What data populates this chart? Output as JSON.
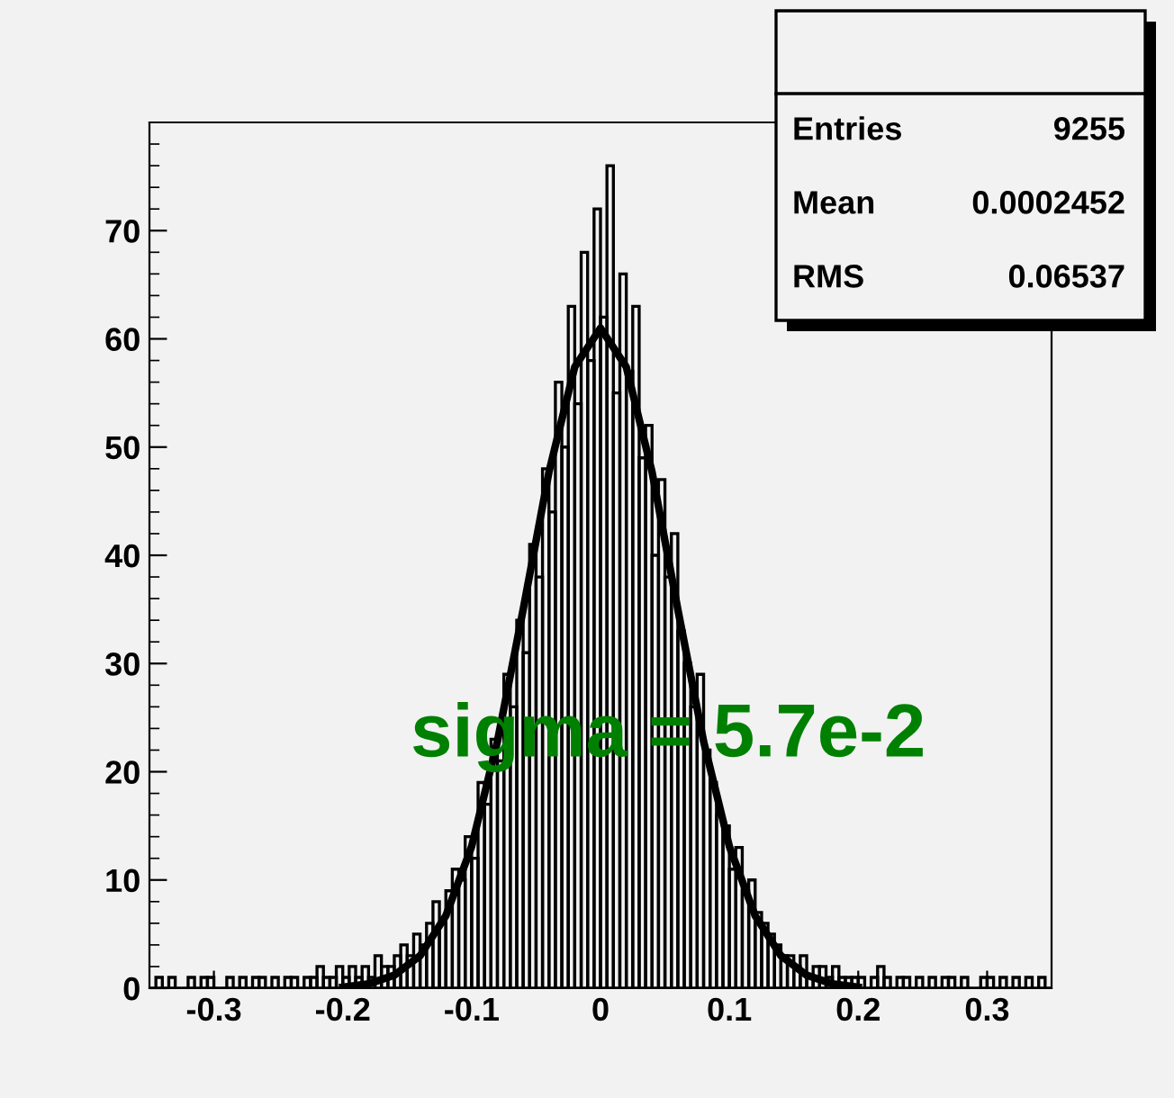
{
  "chart_data": {
    "type": "histogram",
    "bins": [
      -0.35,
      -0.345,
      -0.34,
      -0.335,
      -0.33,
      -0.325,
      -0.32,
      -0.315,
      -0.31,
      -0.305,
      -0.3,
      -0.295,
      -0.29,
      -0.285,
      -0.28,
      -0.275,
      -0.27,
      -0.265,
      -0.26,
      -0.255,
      -0.25,
      -0.245,
      -0.24,
      -0.235,
      -0.23,
      -0.225,
      -0.22,
      -0.215,
      -0.21,
      -0.205,
      -0.2,
      -0.195,
      -0.19,
      -0.185,
      -0.18,
      -0.175,
      -0.17,
      -0.165,
      -0.16,
      -0.155,
      -0.15,
      -0.145,
      -0.14,
      -0.135,
      -0.13,
      -0.125,
      -0.12,
      -0.115,
      -0.11,
      -0.105,
      -0.1,
      -0.095,
      -0.09,
      -0.085,
      -0.08,
      -0.075,
      -0.07,
      -0.065,
      -0.06,
      -0.055,
      -0.05,
      -0.045,
      -0.04,
      -0.035,
      -0.03,
      -0.025,
      -0.02,
      -0.015,
      -0.01,
      -0.005,
      0,
      0.005,
      0.01,
      0.015,
      0.02,
      0.025,
      0.03,
      0.035,
      0.04,
      0.045,
      0.05,
      0.055,
      0.06,
      0.065,
      0.07,
      0.075,
      0.08,
      0.085,
      0.09,
      0.095,
      0.1,
      0.105,
      0.11,
      0.115,
      0.12,
      0.125,
      0.13,
      0.135,
      0.14,
      0.145,
      0.15,
      0.155,
      0.16,
      0.165,
      0.17,
      0.175,
      0.18,
      0.185,
      0.19,
      0.195,
      0.2,
      0.205,
      0.21,
      0.215,
      0.22,
      0.225,
      0.23,
      0.235,
      0.24,
      0.245,
      0.25,
      0.255,
      0.26,
      0.265,
      0.27,
      0.275,
      0.28,
      0.285,
      0.29,
      0.295,
      0.3,
      0.305,
      0.31,
      0.315,
      0.32,
      0.325,
      0.33,
      0.335,
      0.34,
      0.345,
      0.35
    ],
    "series": [
      {
        "color": "#000000",
        "values": [
          0,
          1,
          0,
          1,
          0,
          0,
          1,
          0,
          1,
          1,
          0,
          0,
          1,
          0,
          1,
          0,
          1,
          1,
          0,
          1,
          0,
          1,
          1,
          0,
          1,
          1,
          2,
          1,
          1,
          2,
          1,
          2,
          1,
          2,
          1,
          3,
          2,
          2,
          3,
          4,
          3,
          5,
          4,
          6,
          8,
          6,
          9,
          11,
          10,
          14,
          12,
          19,
          17,
          23,
          21,
          29,
          26,
          34,
          31,
          41,
          38,
          48,
          44,
          56,
          50,
          63,
          54,
          68,
          58,
          72,
          62,
          76,
          55,
          66,
          57,
          63,
          49,
          52,
          40,
          47,
          38,
          42,
          33,
          30,
          26,
          29,
          22,
          19,
          16,
          15,
          11,
          13,
          9,
          10,
          7,
          6,
          5,
          4,
          3,
          3,
          2,
          3,
          1,
          2,
          2,
          1,
          2,
          1,
          1,
          1,
          1,
          0,
          1,
          2,
          1,
          0,
          1,
          1,
          0,
          1,
          0,
          1,
          0,
          1,
          1,
          0,
          1,
          0,
          0,
          1,
          1,
          0,
          1,
          0,
          1,
          0,
          1,
          0,
          1,
          0
        ]
      },
      {
        "type": "line",
        "color": "#000000",
        "x": [
          -0.2,
          -0.18,
          -0.16,
          -0.14,
          -0.12,
          -0.1,
          -0.08,
          -0.06,
          -0.04,
          -0.02,
          0,
          0.02,
          0.04,
          0.06,
          0.08,
          0.1,
          0.12,
          0.14,
          0.16,
          0.18,
          0.2
        ],
        "values": [
          0.1,
          0.4,
          1.2,
          3.0,
          6.7,
          13.1,
          22.8,
          35.0,
          47.7,
          57.4,
          61,
          57.4,
          47.7,
          35.0,
          22.8,
          13.1,
          6.7,
          3.0,
          1.2,
          0.4,
          0.1
        ]
      }
    ],
    "xlim": [
      -0.35,
      0.35
    ],
    "xticks": [
      -0.3,
      -0.2,
      -0.1,
      0,
      0.1,
      0.2,
      0.3
    ],
    "ylim": [
      0,
      80
    ],
    "yticks": [
      0,
      10,
      20,
      30,
      40,
      50,
      60,
      70
    ],
    "grid": false,
    "legend": false,
    "annotations": [
      "sigma = 5.7e-2",
      "Entries",
      "9255",
      "Mean",
      "0.0002452",
      "RMS",
      "0.06537"
    ]
  }
}
